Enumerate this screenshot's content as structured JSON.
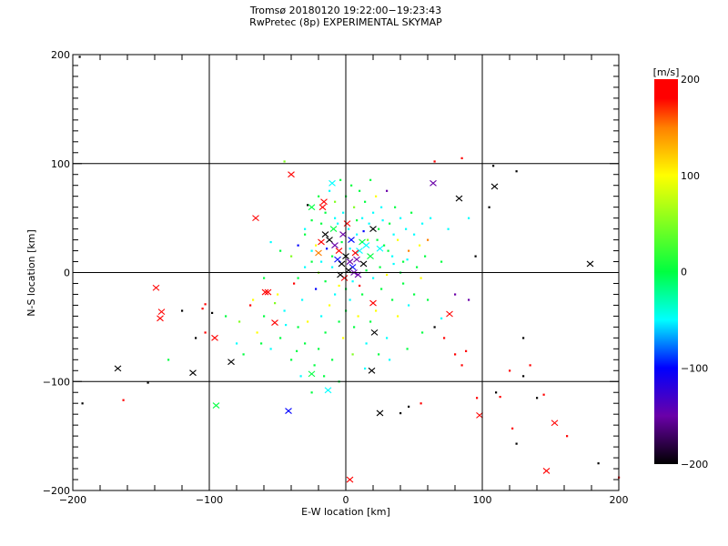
{
  "chart_data": {
    "type": "scatter",
    "title": "Tromsø 20180120 19:22:00−19:23:43",
    "subtitle": "RwPretec (8p) EXPERIMENTAL SKYMAP",
    "xlabel": "E-W location [km]",
    "ylabel": "N-S location [km]",
    "xlim": [
      -200,
      200
    ],
    "ylim": [
      -200,
      200
    ],
    "xticks": [
      -200,
      -100,
      0,
      100,
      200
    ],
    "yticks": [
      -200,
      -100,
      0,
      100,
      200
    ],
    "xtick_labels": [
      "−200",
      "−100",
      "0",
      "100",
      "200"
    ],
    "ytick_labels": [
      "−200",
      "−100",
      "0",
      "100",
      "200"
    ],
    "grid": true,
    "colorbar": {
      "label": "[m/s]",
      "range": [
        -200,
        200
      ],
      "ticks": [
        "200",
        "100",
        "0",
        "−100",
        "−200"
      ],
      "tick_values": [
        200,
        100,
        0,
        -100,
        -200
      ],
      "colormap": [
        [
          -200,
          "#000000"
        ],
        [
          -150,
          "#6a00a8"
        ],
        [
          -100,
          "#0000ff"
        ],
        [
          -50,
          "#00ffff"
        ],
        [
          0,
          "#00ff40"
        ],
        [
          100,
          "#ffff00"
        ],
        [
          150,
          "#ff8000"
        ],
        [
          180,
          "#ff0000"
        ],
        [
          200,
          "#ff0000"
        ]
      ]
    },
    "crosses": [
      [
        -167,
        -88,
        -200
      ],
      [
        -112,
        -92,
        -200
      ],
      [
        -84,
        -82,
        -200
      ],
      [
        -139,
        -14,
        200
      ],
      [
        -135,
        -36,
        200
      ],
      [
        -136,
        -42,
        200
      ],
      [
        -96,
        -60,
        200
      ],
      [
        -95,
        -122,
        0
      ],
      [
        -66,
        50,
        200
      ],
      [
        -59,
        -18,
        200
      ],
      [
        -57,
        -18,
        200
      ],
      [
        -52,
        -46,
        200
      ],
      [
        -40,
        90,
        200
      ],
      [
        -42,
        -127,
        -100
      ],
      [
        -25,
        -93,
        0
      ],
      [
        -17,
        60,
        200
      ],
      [
        -16,
        65,
        200
      ],
      [
        -13,
        -108,
        -50
      ],
      [
        3,
        -190,
        200
      ],
      [
        19,
        -90,
        -200
      ],
      [
        25,
        -129,
        -200
      ],
      [
        20,
        -28,
        200
      ],
      [
        21,
        -55,
        -200
      ],
      [
        76,
        -38,
        200
      ],
      [
        83,
        68,
        -200
      ],
      [
        109,
        79,
        -200
      ],
      [
        98,
        -131,
        200
      ],
      [
        153,
        -138,
        200
      ],
      [
        147,
        -182,
        200
      ],
      [
        179,
        8,
        -200
      ],
      [
        64,
        82,
        -150
      ],
      [
        -25,
        60,
        0
      ],
      [
        -10,
        82,
        -50
      ],
      [
        -12,
        30,
        -200
      ],
      [
        -8,
        25,
        -150
      ],
      [
        -5,
        20,
        200
      ],
      [
        0,
        15,
        -200
      ],
      [
        3,
        10,
        -150
      ],
      [
        5,
        5,
        -100
      ],
      [
        8,
        12,
        -150
      ],
      [
        -3,
        8,
        -200
      ],
      [
        10,
        20,
        -50
      ],
      [
        12,
        28,
        0
      ],
      [
        15,
        25,
        -50
      ],
      [
        -15,
        35,
        -200
      ],
      [
        -18,
        28,
        200
      ],
      [
        -2,
        35,
        -150
      ],
      [
        2,
        2,
        -200
      ],
      [
        6,
        0,
        -150
      ],
      [
        -6,
        12,
        -100
      ],
      [
        7,
        18,
        200
      ],
      [
        18,
        15,
        0
      ],
      [
        -1,
        -5,
        200
      ],
      [
        20,
        40,
        -200
      ],
      [
        4,
        30,
        -100
      ],
      [
        -9,
        40,
        0
      ],
      [
        13,
        8,
        -200
      ],
      [
        -20,
        18,
        150
      ],
      [
        25,
        22,
        -50
      ],
      [
        1,
        45,
        200
      ],
      [
        9,
        -2,
        -150
      ],
      [
        -4,
        -2,
        -200
      ]
    ],
    "points": [
      [
        -195,
        198,
        -200
      ],
      [
        -193,
        -120,
        -200
      ],
      [
        -163,
        -117,
        200
      ],
      [
        -145,
        -101,
        -200
      ],
      [
        -130,
        -80,
        0
      ],
      [
        -103,
        -29,
        200
      ],
      [
        -98,
        -37,
        -200
      ],
      [
        -103,
        -55,
        200
      ],
      [
        -80,
        -65,
        -50
      ],
      [
        -75,
        -75,
        0
      ],
      [
        -70,
        -30,
        200
      ],
      [
        -65,
        -55,
        100
      ],
      [
        -60,
        -40,
        0
      ],
      [
        -55,
        -70,
        -50
      ],
      [
        -50,
        -20,
        100
      ],
      [
        -48,
        -60,
        0
      ],
      [
        -45,
        -35,
        -50
      ],
      [
        -40,
        -80,
        0
      ],
      [
        -38,
        -10,
        200
      ],
      [
        -35,
        -50,
        0
      ],
      [
        -32,
        -25,
        -50
      ],
      [
        -30,
        -65,
        0
      ],
      [
        -28,
        -45,
        100
      ],
      [
        -25,
        -110,
        0
      ],
      [
        -22,
        -15,
        -100
      ],
      [
        -20,
        -70,
        0
      ],
      [
        -18,
        -40,
        -50
      ],
      [
        -15,
        -55,
        0
      ],
      [
        -12,
        -30,
        100
      ],
      [
        -10,
        -80,
        0
      ],
      [
        -8,
        -20,
        -50
      ],
      [
        -5,
        -45,
        0
      ],
      [
        -2,
        -60,
        100
      ],
      [
        0,
        -35,
        0
      ],
      [
        3,
        -25,
        -50
      ],
      [
        6,
        -50,
        0
      ],
      [
        9,
        -40,
        100
      ],
      [
        12,
        -20,
        0
      ],
      [
        15,
        -65,
        -50
      ],
      [
        18,
        -45,
        0
      ],
      [
        22,
        -35,
        100
      ],
      [
        26,
        -15,
        0
      ],
      [
        30,
        -60,
        -50
      ],
      [
        34,
        -25,
        0
      ],
      [
        38,
        -40,
        100
      ],
      [
        42,
        -10,
        0
      ],
      [
        46,
        -30,
        -50
      ],
      [
        50,
        -20,
        0
      ],
      [
        55,
        -5,
        100
      ],
      [
        60,
        -25,
        0
      ],
      [
        65,
        -50,
        -200
      ],
      [
        72,
        -60,
        200
      ],
      [
        80,
        -75,
        200
      ],
      [
        85,
        -85,
        200
      ],
      [
        88,
        -72,
        200
      ],
      [
        90,
        -25,
        -150
      ],
      [
        95,
        15,
        -200
      ],
      [
        -45,
        102,
        50
      ],
      [
        -55,
        28,
        -50
      ],
      [
        -48,
        20,
        0
      ],
      [
        -40,
        15,
        50
      ],
      [
        -30,
        40,
        -50
      ],
      [
        -28,
        62,
        -200
      ],
      [
        -25,
        48,
        0
      ],
      [
        -22,
        25,
        100
      ],
      [
        -20,
        70,
        0
      ],
      [
        -18,
        10,
        -50
      ],
      [
        -15,
        55,
        0
      ],
      [
        -12,
        75,
        -50
      ],
      [
        -10,
        15,
        0
      ],
      [
        -8,
        65,
        50
      ],
      [
        -6,
        45,
        -50
      ],
      [
        -4,
        85,
        0
      ],
      [
        -2,
        55,
        -50
      ],
      [
        0,
        70,
        0
      ],
      [
        2,
        40,
        -50
      ],
      [
        4,
        80,
        0
      ],
      [
        6,
        60,
        50
      ],
      [
        8,
        35,
        -50
      ],
      [
        10,
        75,
        0
      ],
      [
        12,
        50,
        -50
      ],
      [
        14,
        65,
        0
      ],
      [
        16,
        30,
        50
      ],
      [
        18,
        85,
        0
      ],
      [
        20,
        55,
        -50
      ],
      [
        22,
        70,
        100
      ],
      [
        24,
        40,
        0
      ],
      [
        26,
        60,
        -50
      ],
      [
        28,
        25,
        0
      ],
      [
        30,
        75,
        -150
      ],
      [
        32,
        45,
        0
      ],
      [
        34,
        15,
        -50
      ],
      [
        36,
        60,
        0
      ],
      [
        38,
        30,
        100
      ],
      [
        40,
        50,
        -50
      ],
      [
        42,
        10,
        0
      ],
      [
        44,
        40,
        -50
      ],
      [
        46,
        20,
        150
      ],
      [
        48,
        55,
        0
      ],
      [
        50,
        35,
        -50
      ],
      [
        52,
        5,
        0
      ],
      [
        54,
        25,
        100
      ],
      [
        56,
        45,
        -50
      ],
      [
        58,
        15,
        0
      ],
      [
        60,
        30,
        150
      ],
      [
        62,
        50,
        -50
      ],
      [
        65,
        102,
        200
      ],
      [
        70,
        10,
        0
      ],
      [
        75,
        40,
        -50
      ],
      [
        80,
        -20,
        -150
      ],
      [
        85,
        105,
        200
      ],
      [
        90,
        50,
        -50
      ],
      [
        105,
        60,
        -200
      ],
      [
        108,
        98,
        -200
      ],
      [
        125,
        93,
        -200
      ],
      [
        110,
        -110,
        -200
      ],
      [
        113,
        -114,
        200
      ],
      [
        120,
        -90,
        200
      ],
      [
        130,
        -95,
        -200
      ],
      [
        135,
        -85,
        200
      ],
      [
        140,
        -115,
        -200
      ],
      [
        145,
        -112,
        200
      ],
      [
        130,
        -60,
        -200
      ],
      [
        125,
        -157,
        -200
      ],
      [
        122,
        -143,
        200
      ],
      [
        162,
        -150,
        200
      ],
      [
        185,
        -175,
        -200
      ],
      [
        200,
        -188,
        200
      ],
      [
        46,
        -123,
        -200
      ],
      [
        40,
        -129,
        -200
      ],
      [
        55,
        -120,
        200
      ],
      [
        -120,
        -35,
        -200
      ],
      [
        -105,
        -33,
        200
      ],
      [
        -110,
        -60,
        -200
      ],
      [
        -88,
        -40,
        0
      ],
      [
        -78,
        -45,
        50
      ],
      [
        -68,
        -25,
        100
      ],
      [
        -62,
        -65,
        0
      ],
      [
        -35,
        -5,
        0
      ],
      [
        -30,
        5,
        -50
      ],
      [
        -25,
        10,
        0
      ],
      [
        -20,
        0,
        50
      ],
      [
        -15,
        -8,
        0
      ],
      [
        -10,
        5,
        -50
      ],
      [
        -5,
        -12,
        100
      ],
      [
        0,
        -15,
        0
      ],
      [
        5,
        -8,
        -50
      ],
      [
        10,
        -12,
        200
      ],
      [
        15,
        2,
        0
      ],
      [
        20,
        -5,
        -50
      ],
      [
        25,
        5,
        0
      ],
      [
        30,
        -2,
        100
      ],
      [
        35,
        8,
        -50
      ],
      [
        40,
        0,
        0
      ],
      [
        45,
        12,
        -50
      ],
      [
        -35,
        25,
        -100
      ],
      [
        -30,
        35,
        0
      ],
      [
        -25,
        20,
        -50
      ],
      [
        -18,
        45,
        0
      ],
      [
        -14,
        22,
        -100
      ],
      [
        -8,
        50,
        -50
      ],
      [
        -3,
        28,
        0
      ],
      [
        3,
        22,
        -50
      ],
      [
        8,
        48,
        0
      ],
      [
        13,
        38,
        -100
      ],
      [
        17,
        45,
        -50
      ],
      [
        23,
        30,
        0
      ],
      [
        27,
        48,
        -50
      ],
      [
        31,
        20,
        0
      ],
      [
        35,
        35,
        -50
      ],
      [
        -60,
        -5,
        0
      ],
      [
        -52,
        -28,
        50
      ],
      [
        -44,
        -48,
        -50
      ],
      [
        -36,
        -72,
        0
      ],
      [
        -33,
        -95,
        -50
      ],
      [
        -23,
        -85,
        0
      ],
      [
        -16,
        -95,
        0
      ],
      [
        -5,
        -100,
        0
      ],
      [
        5,
        -75,
        50
      ],
      [
        14,
        -88,
        -50
      ],
      [
        24,
        -75,
        0
      ],
      [
        32,
        -80,
        -50
      ],
      [
        45,
        -70,
        0
      ],
      [
        56,
        -55,
        0
      ],
      [
        70,
        -42,
        -50
      ],
      [
        96,
        -115,
        200
      ]
    ]
  }
}
